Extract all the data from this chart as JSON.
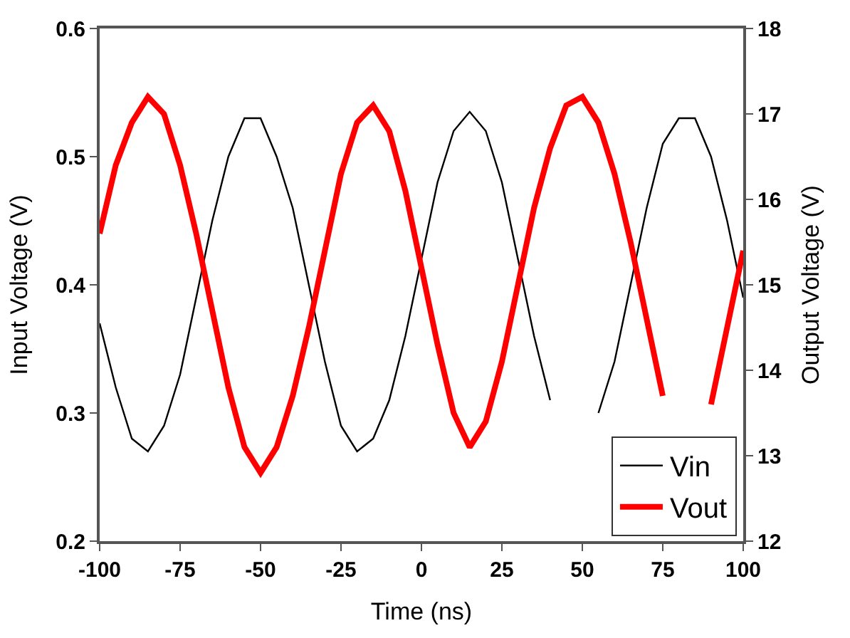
{
  "chart_data": {
    "type": "line",
    "xlabel": "Time (ns)",
    "ylabel": "Input Voltage (V)",
    "y2label": "Output Voltage (V)",
    "x": [
      -100,
      -95,
      -90,
      -85,
      -80,
      -75,
      -70,
      -65,
      -60,
      -55,
      -50,
      -45,
      -40,
      -35,
      -30,
      -25,
      -20,
      -15,
      -10,
      -5,
      0,
      5,
      10,
      15,
      20,
      25,
      30,
      35,
      40,
      45,
      50,
      55,
      60,
      65,
      70,
      75,
      80,
      85,
      90,
      95,
      100
    ],
    "series": [
      {
        "name": "Vin",
        "color": "#000000",
        "values": [
          0.37,
          0.32,
          0.28,
          0.27,
          0.29,
          0.33,
          0.39,
          0.45,
          0.5,
          0.53,
          0.53,
          0.5,
          0.46,
          0.4,
          0.34,
          0.29,
          0.27,
          0.28,
          0.31,
          0.36,
          0.42,
          0.48,
          0.52,
          0.535,
          0.52,
          0.48,
          0.42,
          0.36,
          0.31,
          null,
          null,
          0.3,
          0.34,
          0.4,
          0.46,
          0.51,
          0.53,
          0.53,
          0.5,
          0.45,
          0.39
        ]
      },
      {
        "name": "Vout",
        "color": "#ff0000",
        "axis": "y2",
        "values": [
          15.6,
          16.4,
          16.9,
          17.2,
          17.0,
          16.4,
          15.6,
          14.7,
          13.8,
          13.1,
          12.8,
          13.1,
          13.7,
          14.5,
          15.4,
          16.3,
          16.9,
          17.1,
          16.8,
          16.1,
          15.2,
          14.3,
          13.5,
          13.1,
          13.4,
          14.1,
          15.0,
          15.9,
          16.6,
          17.1,
          17.2,
          16.9,
          16.3,
          15.5,
          14.6,
          13.7,
          null,
          null,
          13.6,
          14.5,
          15.4
        ]
      }
    ],
    "xlim": [
      -100,
      100
    ],
    "xticks": [
      -100,
      -75,
      -50,
      -25,
      0,
      25,
      50,
      75,
      100
    ],
    "ylim": [
      0.2,
      0.6
    ],
    "yticks": [
      0.2,
      0.3,
      0.4,
      0.5,
      0.6
    ],
    "y2lim": [
      12,
      18
    ],
    "y2ticks": [
      12,
      13,
      14,
      15,
      16,
      17,
      18
    ],
    "legend": "bottom right",
    "marker": "none",
    "line_style": "solid"
  }
}
